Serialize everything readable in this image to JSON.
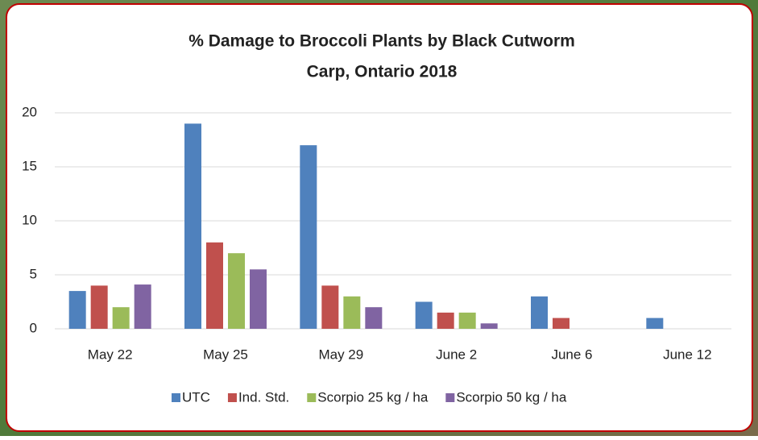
{
  "chart_data": {
    "type": "bar",
    "title": "% Damage to Broccoli Plants by Black Cutworm",
    "subtitle": "Carp, Ontario  2018",
    "categories": [
      "May 22",
      "May 25",
      "May 29",
      "June 2",
      "June 6",
      "June 12"
    ],
    "series": [
      {
        "name": "UTC",
        "color": "#4f81bd",
        "values": [
          3.5,
          19,
          17,
          2.5,
          3,
          1
        ]
      },
      {
        "name": "Ind. Std.",
        "color": "#c0504d",
        "values": [
          4,
          8,
          4,
          1.5,
          1,
          0
        ]
      },
      {
        "name": "Scorpio 25 kg / ha",
        "color": "#9bbb59",
        "values": [
          2,
          7,
          3,
          1.5,
          0,
          0
        ]
      },
      {
        "name": "Scorpio 50 kg / ha",
        "color": "#8064a2",
        "values": [
          4.1,
          5.5,
          2,
          0.5,
          0,
          0
        ]
      }
    ],
    "ylim": [
      0,
      20
    ],
    "yticks": [
      0,
      5,
      10,
      15,
      20
    ],
    "grid": true,
    "legend": "bottom"
  }
}
